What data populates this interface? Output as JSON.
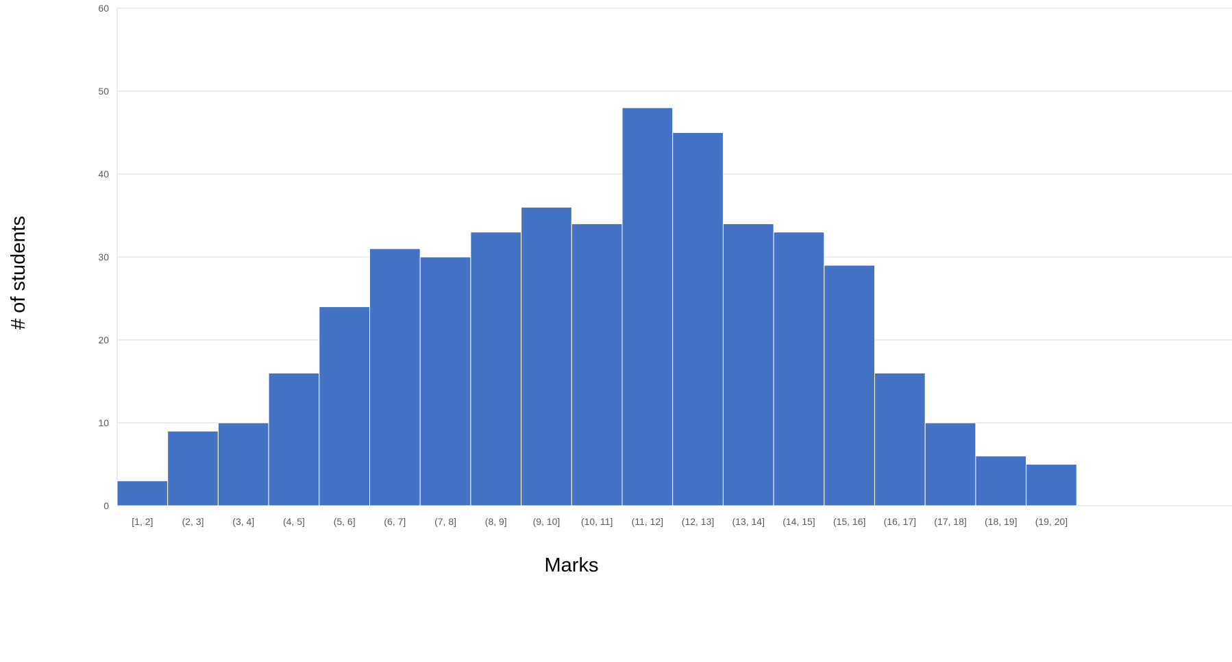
{
  "chart_data": {
    "type": "bar",
    "title": "",
    "xlabel": "Marks",
    "ylabel": "# of students",
    "categories": [
      "[1, 2]",
      "(2, 3]",
      "(3, 4]",
      "(4, 5]",
      "(5, 6]",
      "(6, 7]",
      "(7, 8]",
      "(8, 9]",
      "(9, 10]",
      "(10, 11]",
      "(11, 12]",
      "(12, 13]",
      "(13, 14]",
      "(14, 15]",
      "(15, 16]",
      "(16, 17]",
      "(17, 18]",
      "(18, 19]",
      "(19, 20]"
    ],
    "values": [
      3,
      9,
      10,
      16,
      24,
      31,
      30,
      33,
      36,
      34,
      48,
      45,
      34,
      33,
      29,
      16,
      10,
      6,
      5
    ],
    "ylim": [
      0,
      60
    ],
    "yticks": [
      0,
      10,
      20,
      30,
      40,
      50,
      60
    ],
    "grid": true,
    "legend": "none",
    "bar_color": "#4472c4",
    "grid_color": "#d9d9d9",
    "gap_between_bars": false
  }
}
